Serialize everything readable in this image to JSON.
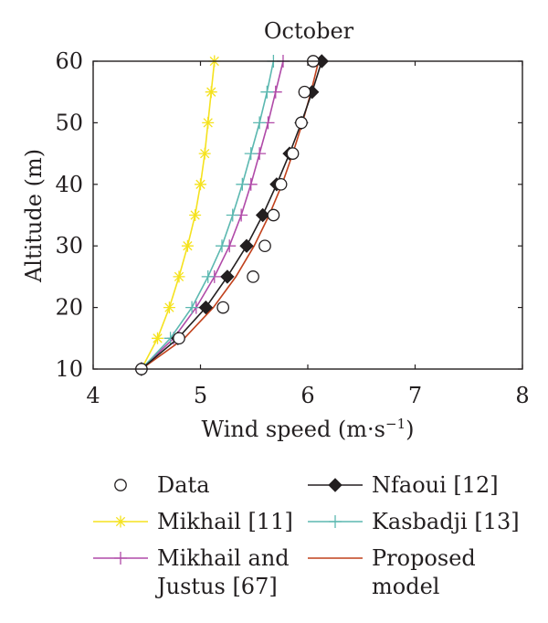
{
  "chart_data": {
    "type": "line",
    "title": "October",
    "xlabel_main": "Wind speed (m·s",
    "xlabel_exp": "−1",
    "xlabel_close": ")",
    "ylabel": "Altitude (m)",
    "xlim": [
      4,
      8
    ],
    "ylim": [
      10,
      60
    ],
    "xticks": [
      "4",
      "5",
      "6",
      "7",
      "8"
    ],
    "yticks": [
      "10",
      "20",
      "30",
      "40",
      "50",
      "60"
    ],
    "grid": false,
    "legend_position": "bottom",
    "series": [
      {
        "key": "data",
        "legend": [
          "Data"
        ],
        "color": "#231f20",
        "marker": "circle",
        "line": false,
        "points": [
          [
            4.45,
            10
          ],
          [
            4.8,
            15
          ],
          [
            5.21,
            20
          ],
          [
            5.49,
            25
          ],
          [
            5.6,
            30
          ],
          [
            5.68,
            35
          ],
          [
            5.75,
            40
          ],
          [
            5.86,
            45
          ],
          [
            5.94,
            50
          ],
          [
            5.97,
            55
          ],
          [
            6.05,
            60
          ]
        ]
      },
      {
        "key": "mikhail",
        "legend": [
          "Mikhail [11]"
        ],
        "color": "#f5e21e",
        "marker": "asterisk",
        "line": true,
        "points": [
          [
            4.45,
            10
          ],
          [
            4.6,
            15
          ],
          [
            4.71,
            20
          ],
          [
            4.8,
            25
          ],
          [
            4.88,
            30
          ],
          [
            4.95,
            35
          ],
          [
            5.0,
            40
          ],
          [
            5.04,
            45
          ],
          [
            5.07,
            50
          ],
          [
            5.1,
            55
          ],
          [
            5.13,
            60
          ]
        ]
      },
      {
        "key": "mikhail_justus",
        "legend": [
          "Mikhail and",
          "Justus [67]"
        ],
        "color": "#b04aa8",
        "marker": "plus",
        "line": true,
        "points": [
          [
            4.45,
            10
          ],
          [
            4.75,
            15
          ],
          [
            4.96,
            20
          ],
          [
            5.13,
            25
          ],
          [
            5.27,
            30
          ],
          [
            5.38,
            35
          ],
          [
            5.47,
            40
          ],
          [
            5.55,
            45
          ],
          [
            5.63,
            50
          ],
          [
            5.7,
            55
          ],
          [
            5.77,
            60
          ]
        ]
      },
      {
        "key": "nfaoui",
        "legend": [
          "Nfaoui [12]"
        ],
        "color": "#231f20",
        "marker": "diamond",
        "line": true,
        "points": [
          [
            4.45,
            10
          ],
          [
            4.79,
            15
          ],
          [
            5.05,
            20
          ],
          [
            5.25,
            25
          ],
          [
            5.43,
            30
          ],
          [
            5.58,
            35
          ],
          [
            5.71,
            40
          ],
          [
            5.83,
            45
          ],
          [
            5.94,
            50
          ],
          [
            6.04,
            55
          ],
          [
            6.13,
            60
          ]
        ]
      },
      {
        "key": "kasbadji",
        "legend": [
          "Kasbadji [13]"
        ],
        "color": "#5bb8b0",
        "marker": "plus",
        "line": true,
        "points": [
          [
            4.45,
            10
          ],
          [
            4.72,
            15
          ],
          [
            4.92,
            20
          ],
          [
            5.07,
            25
          ],
          [
            5.2,
            30
          ],
          [
            5.3,
            35
          ],
          [
            5.39,
            40
          ],
          [
            5.47,
            45
          ],
          [
            5.55,
            50
          ],
          [
            5.62,
            55
          ],
          [
            5.68,
            60
          ]
        ]
      },
      {
        "key": "proposed",
        "legend": [
          "Proposed",
          "model"
        ],
        "color": "#c1411c",
        "marker": "none",
        "line": true,
        "points": [
          [
            4.45,
            10
          ],
          [
            4.85,
            15
          ],
          [
            5.12,
            20
          ],
          [
            5.33,
            25
          ],
          [
            5.5,
            30
          ],
          [
            5.64,
            35
          ],
          [
            5.76,
            40
          ],
          [
            5.86,
            45
          ],
          [
            5.95,
            50
          ],
          [
            6.03,
            55
          ],
          [
            6.1,
            60
          ]
        ]
      }
    ]
  }
}
